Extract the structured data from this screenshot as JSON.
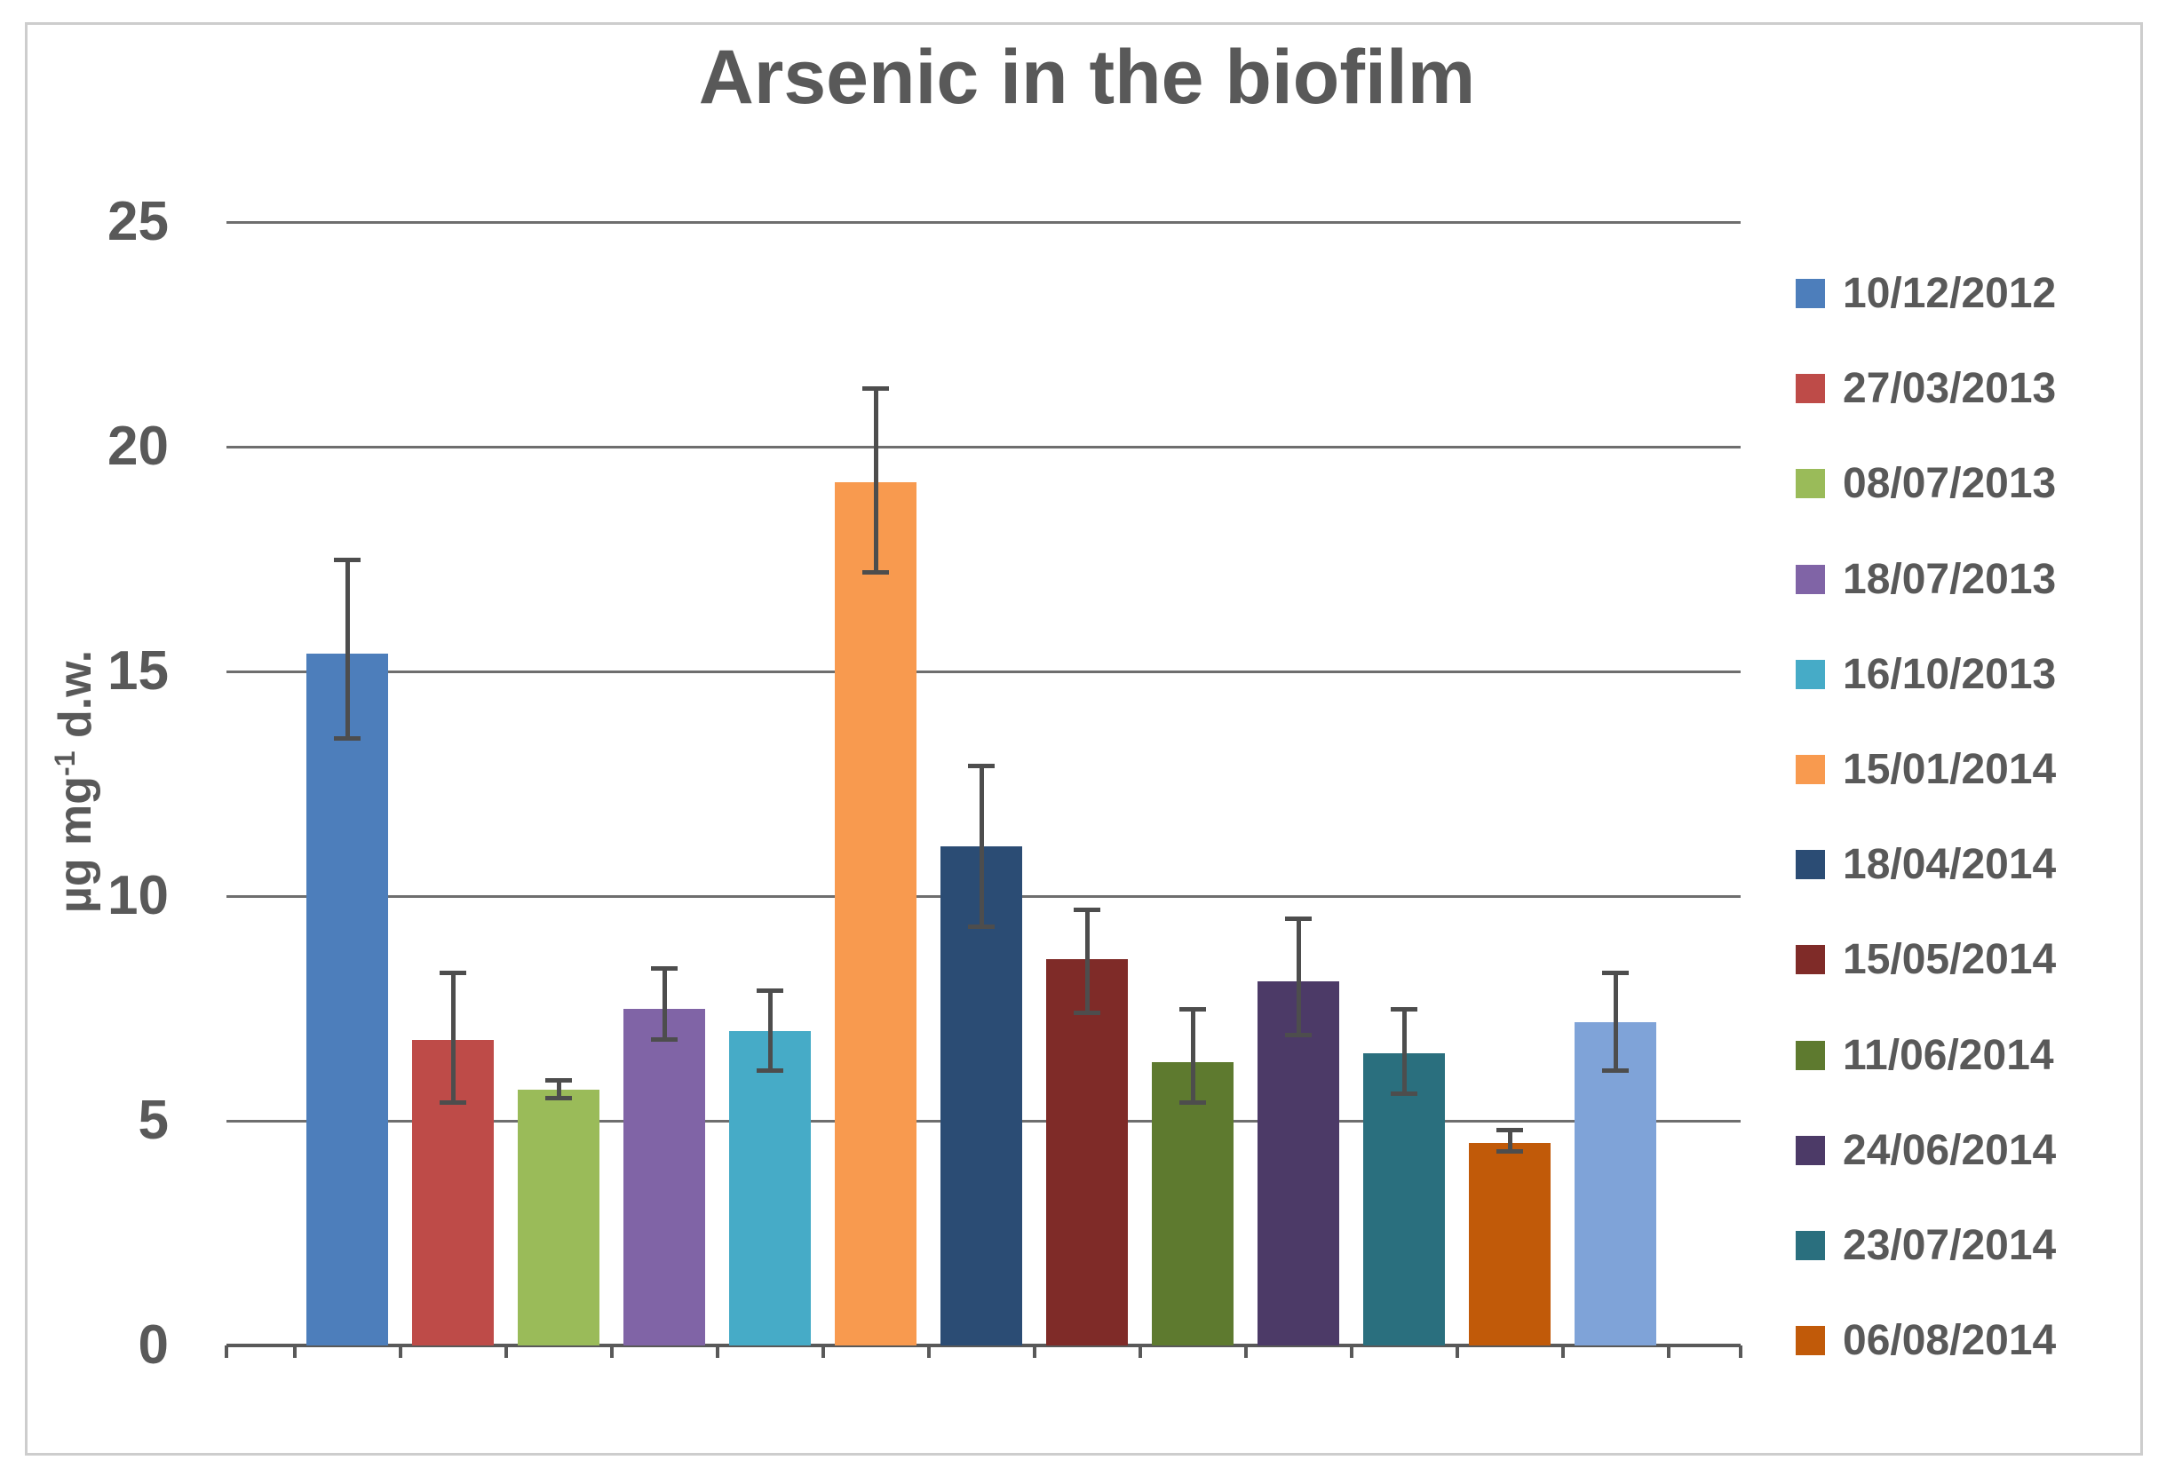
{
  "figure": {
    "background": "#FFFFFF",
    "border_color": "#CDCDCD"
  },
  "chart_data": {
    "type": "bar",
    "title": "Arsenic in the biofilm",
    "title_color": "#595959",
    "ylabel": {
      "prefix": "µg mg",
      "superscript": "-1",
      "suffix": " d.w."
    },
    "ylim": [
      0,
      25
    ],
    "yticks": [
      0,
      5,
      10,
      15,
      20,
      25
    ],
    "grid": true,
    "gridline_color": "#6E6E6E",
    "axis_color": "#595959",
    "error_bar_color": "#4D4D4D",
    "text_color": "#595959",
    "legend_position": "right",
    "legend": [
      "10/12/2012",
      "27/03/2013",
      "08/07/2013",
      "18/07/2013",
      "16/10/2013",
      "15/01/2014",
      "18/04/2014",
      "15/05/2014",
      "11/06/2014",
      "24/06/2014",
      "23/07/2014",
      "06/08/2014"
    ],
    "bars": [
      {
        "label": "10/12/2012",
        "value": 15.4,
        "err_lo": 13.5,
        "err_hi": 17.5,
        "color": "#4D7EBB",
        "in_legend": true
      },
      {
        "label": "27/03/2013",
        "value": 6.8,
        "err_lo": 5.4,
        "err_hi": 8.3,
        "color": "#BE4B48",
        "in_legend": true
      },
      {
        "label": "08/07/2013",
        "value": 5.7,
        "err_lo": 5.5,
        "err_hi": 5.9,
        "color": "#9ABB59",
        "in_legend": true
      },
      {
        "label": "18/07/2013",
        "value": 7.5,
        "err_lo": 6.8,
        "err_hi": 8.4,
        "color": "#8064A6",
        "in_legend": true
      },
      {
        "label": "16/10/2013",
        "value": 7.0,
        "err_lo": 6.1,
        "err_hi": 7.9,
        "color": "#46ABC7",
        "in_legend": true
      },
      {
        "label": "15/01/2014",
        "value": 19.2,
        "err_lo": 17.2,
        "err_hi": 21.3,
        "color": "#F89A4F",
        "in_legend": true
      },
      {
        "label": "18/04/2014",
        "value": 11.1,
        "err_lo": 9.3,
        "err_hi": 12.9,
        "color": "#2B4C74",
        "in_legend": true
      },
      {
        "label": "15/05/2014",
        "value": 8.6,
        "err_lo": 7.4,
        "err_hi": 9.7,
        "color": "#7F2B28",
        "in_legend": true
      },
      {
        "label": "11/06/2014",
        "value": 6.3,
        "err_lo": 5.4,
        "err_hi": 7.5,
        "color": "#5E7A2F",
        "in_legend": true
      },
      {
        "label": "24/06/2014",
        "value": 8.1,
        "err_lo": 6.9,
        "err_hi": 9.5,
        "color": "#4C3A67",
        "in_legend": true
      },
      {
        "label": "23/07/2014",
        "value": 6.5,
        "err_lo": 5.6,
        "err_hi": 7.5,
        "color": "#2A6F7E",
        "in_legend": true
      },
      {
        "label": "06/08/2014",
        "value": 4.5,
        "err_lo": 4.3,
        "err_hi": 4.8,
        "color": "#C15A09",
        "in_legend": true
      },
      {
        "label": "",
        "value": 7.2,
        "err_lo": 6.1,
        "err_hi": 8.3,
        "color": "#7FA3D8",
        "in_legend": false
      }
    ]
  }
}
